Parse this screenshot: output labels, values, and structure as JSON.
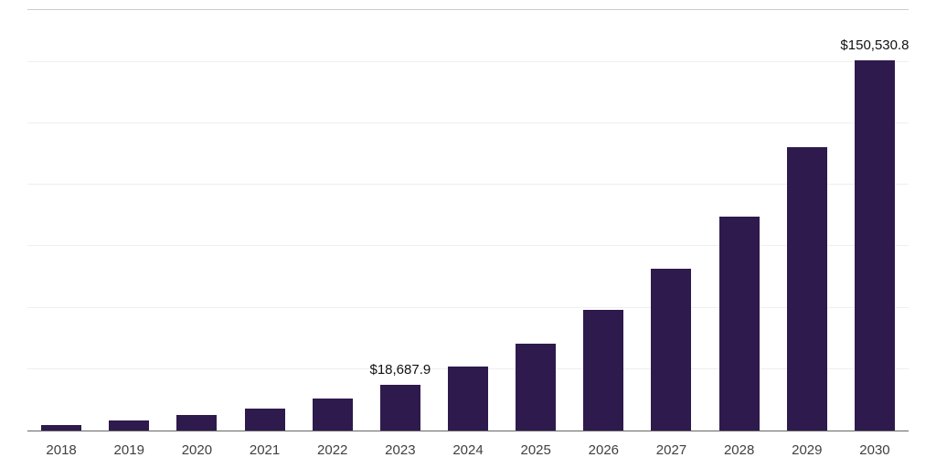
{
  "chart_data": {
    "type": "bar",
    "categories": [
      "2018",
      "2019",
      "2020",
      "2021",
      "2022",
      "2023",
      "2024",
      "2025",
      "2026",
      "2027",
      "2028",
      "2029",
      "2030"
    ],
    "values": [
      2200,
      4100,
      6400,
      9000,
      13100,
      18687.9,
      26200,
      35500,
      49000,
      65800,
      87100,
      115100,
      150530.8
    ],
    "data_labels": {
      "2023": "$18,687.9",
      "2030": "$150,530.8"
    },
    "xlabel": "",
    "ylabel": "",
    "ylim": [
      0,
      171000
    ],
    "grid": {
      "step": 25000,
      "max": 150000,
      "visible": true
    },
    "legend": "none",
    "colors": {
      "bar": "#2e1a4d",
      "gridline": "#efefef",
      "axis": "#666666",
      "plot_top_border": "#cccccc",
      "background": "#ffffff",
      "data_label": "#111111",
      "tick_label": "#404040"
    }
  }
}
